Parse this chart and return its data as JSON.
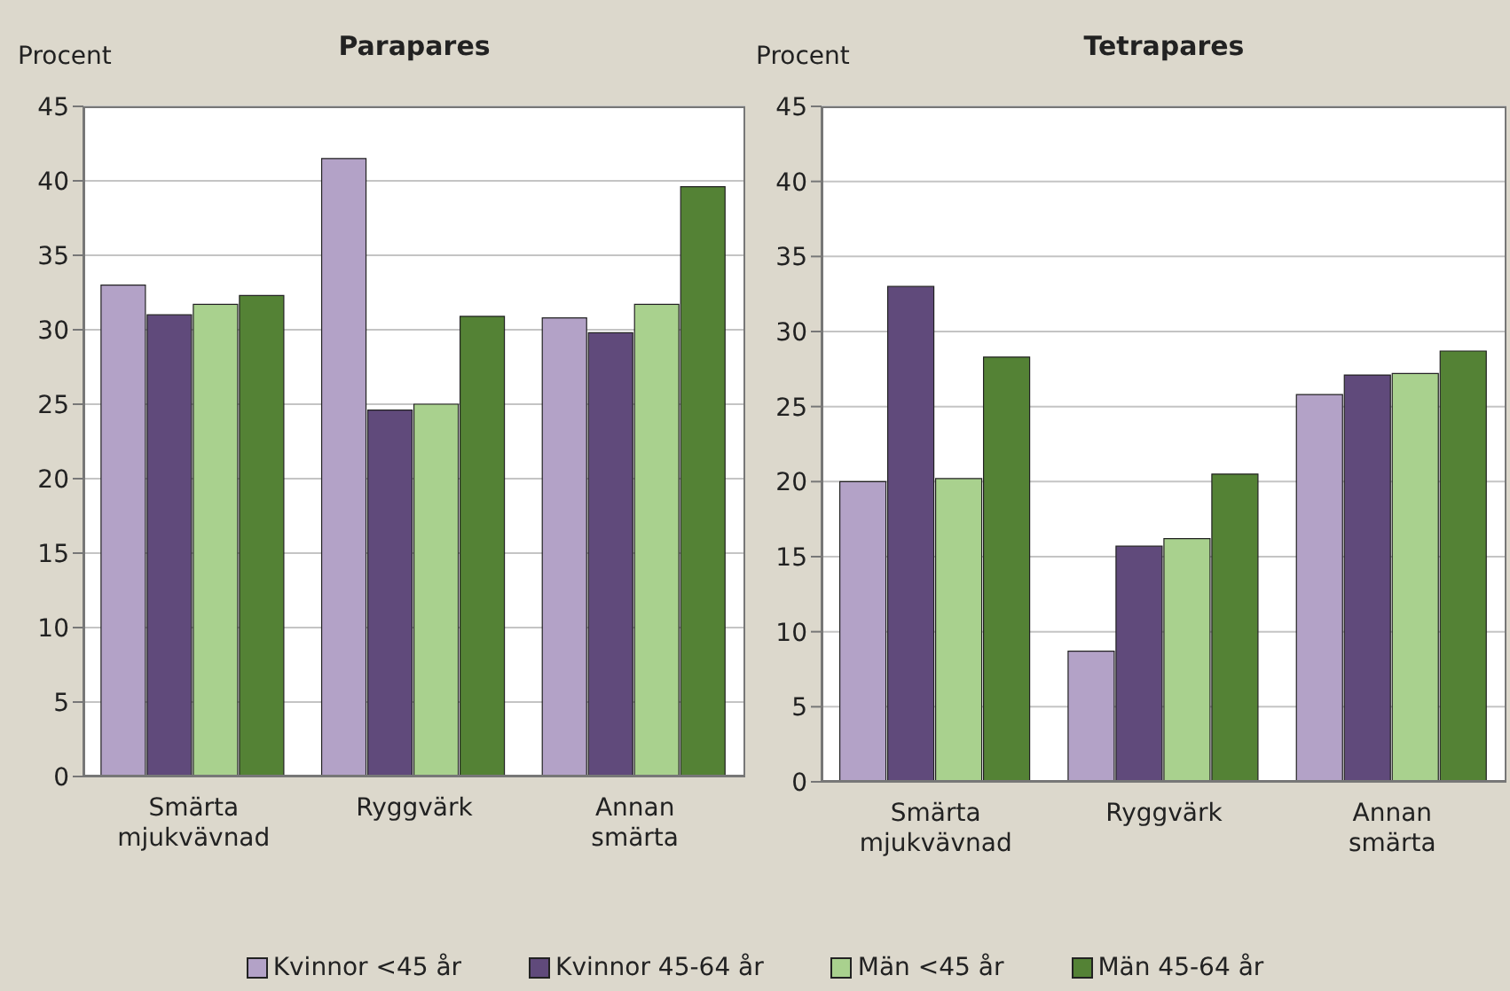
{
  "chart_data": [
    {
      "type": "bar",
      "title": "Parapares",
      "ylabel": "Procent",
      "categories": [
        "Smärta mjukvävnad",
        "Ryggvärk",
        "Annan smärta"
      ],
      "ylim": [
        0,
        45
      ],
      "yticks": [
        0,
        5,
        10,
        15,
        20,
        25,
        30,
        35,
        40,
        45
      ],
      "grid": "y",
      "legend": "bottom",
      "series": [
        {
          "name": "Kvinnor <45 år",
          "color": "#b3a2c7",
          "values": [
            33.0,
            41.5,
            30.8
          ]
        },
        {
          "name": "Kvinnor 45-64 år",
          "color": "#604a7b",
          "values": [
            31.0,
            24.6,
            29.8
          ]
        },
        {
          "name": "Män <45 år",
          "color": "#a9d18e",
          "values": [
            31.7,
            25.0,
            31.7
          ]
        },
        {
          "name": "Män 45-64 år",
          "color": "#548235",
          "values": [
            32.3,
            30.9,
            39.6
          ]
        }
      ]
    },
    {
      "type": "bar",
      "title": "Tetrapares",
      "ylabel": "Procent",
      "categories": [
        "Smärta mjukvävnad",
        "Ryggvärk",
        "Annan smärta"
      ],
      "ylim": [
        0,
        45
      ],
      "yticks": [
        0,
        5,
        10,
        15,
        20,
        25,
        30,
        35,
        40,
        45
      ],
      "grid": "y",
      "legend": "bottom",
      "series": [
        {
          "name": "Kvinnor <45 år",
          "color": "#b3a2c7",
          "values": [
            20.0,
            8.7,
            25.8
          ]
        },
        {
          "name": "Kvinnor 45-64 år",
          "color": "#604a7b",
          "values": [
            33.0,
            15.7,
            27.1
          ]
        },
        {
          "name": "Män <45 år",
          "color": "#a9d18e",
          "values": [
            20.2,
            16.2,
            27.2
          ]
        },
        {
          "name": "Män 45-64 år",
          "color": "#548235",
          "values": [
            28.3,
            20.5,
            28.7
          ]
        }
      ]
    }
  ]
}
